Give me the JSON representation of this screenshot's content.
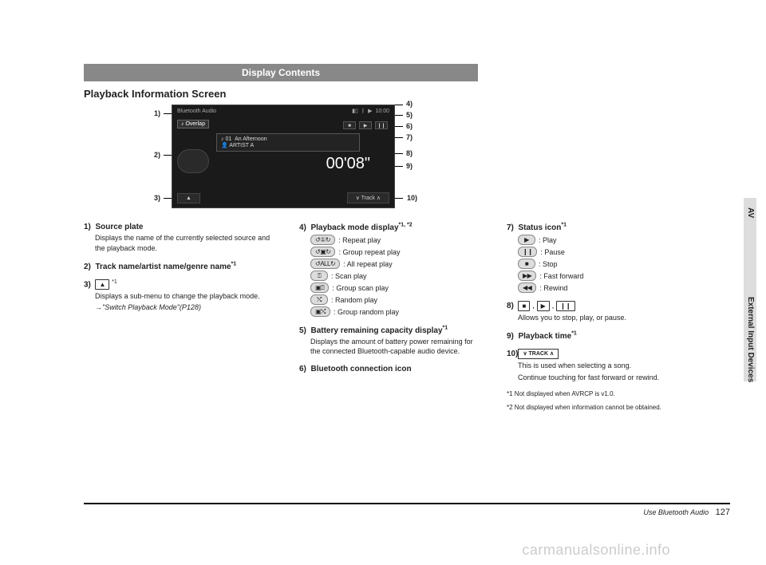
{
  "header": "Display Contents",
  "section": "Playback Information Screen",
  "screen": {
    "source": "Bluetooth Audio",
    "clock": "10:00",
    "overlap": "Overlap",
    "track_no": "01",
    "track_title": "An Afternoon",
    "artist": "ARTIST A",
    "time": "00'08\"",
    "bottom_left": "▲",
    "bottom_right": "Track",
    "btn_stop": "■",
    "btn_play": "▶",
    "btn_pause": "❙❙"
  },
  "callouts": {
    "c1": "1)",
    "c2": "2)",
    "c3": "3)",
    "c4": "4)",
    "c5": "5)",
    "c6": "6)",
    "c7": "7)",
    "c8": "8)",
    "c9": "9)",
    "c10": "10)"
  },
  "left": {
    "i1_title": "Source plate",
    "i1_num": "1)",
    "i1_desc": "Displays the name of the currently selected source and the playback mode.",
    "i2_num": "2)",
    "i2_title": "Track name/artist name/genre name",
    "i2_sup": "*1",
    "i3_num": "3)",
    "i3_icon": "▲",
    "i3_sup": "*1",
    "i3_desc": "Displays a sub-menu to change the playback mode.",
    "i3_ref": "→\"Switch Playback Mode\"(P128)"
  },
  "mid": {
    "i4_num": "4)",
    "i4_title": "Playback mode display",
    "i4_sup": "*1, *2",
    "modes": [
      {
        "icon": "↺①↻",
        "label": ": Repeat play"
      },
      {
        "icon": "↺▣↻",
        "label": ": Group repeat play"
      },
      {
        "icon": "↺ALL↻",
        "label": ": All repeat play"
      },
      {
        "icon": "⍰",
        "label": ": Scan play"
      },
      {
        "icon": "▣⍰",
        "label": ": Group scan play"
      },
      {
        "icon": "⤭",
        "label": ": Random play"
      },
      {
        "icon": "▣⤭",
        "label": ": Group random play"
      }
    ],
    "i5_num": "5)",
    "i5_title": "Battery remaining capacity display",
    "i5_sup": "*1",
    "i5_desc": "Displays the amount of battery power remaining for the connected Bluetooth-capable audio device.",
    "i6_num": "6)",
    "i6_title": "Bluetooth connection icon"
  },
  "right": {
    "i7_num": "7)",
    "i7_title": "Status icon",
    "i7_sup": "*1",
    "status": [
      {
        "icon": "▶",
        "label": ": Play"
      },
      {
        "icon": "❙❙",
        "label": ": Pause"
      },
      {
        "icon": "■",
        "label": ": Stop"
      },
      {
        "icon": "▶▶",
        "label": ": Fast forward"
      },
      {
        "icon": "◀◀",
        "label": ": Rewind"
      }
    ],
    "i8_num": "8)",
    "i8_icons": {
      "a": "■",
      "b": "▶",
      "c": "❙❙"
    },
    "i8_sep": " , ",
    "i8_desc": "Allows you to stop, play, or pause.",
    "i9_num": "9)",
    "i9_title": "Playback time",
    "i9_sup": "*1",
    "i10_num": "10)",
    "i10_icon": "∨ TRACK ∧",
    "i10_desc1": "This is used when selecting a song.",
    "i10_desc2": "Continue touching for fast forward or rewind.",
    "fn1": "*1  Not displayed when AVRCP is v1.0.",
    "fn2": "*2  Not displayed when information cannot be obtained."
  },
  "side": {
    "av": "AV",
    "ext": "External Input Devices"
  },
  "footer": {
    "label": "Use Bluetooth Audio",
    "page": "127"
  },
  "watermark": "carmanualsonline.info"
}
